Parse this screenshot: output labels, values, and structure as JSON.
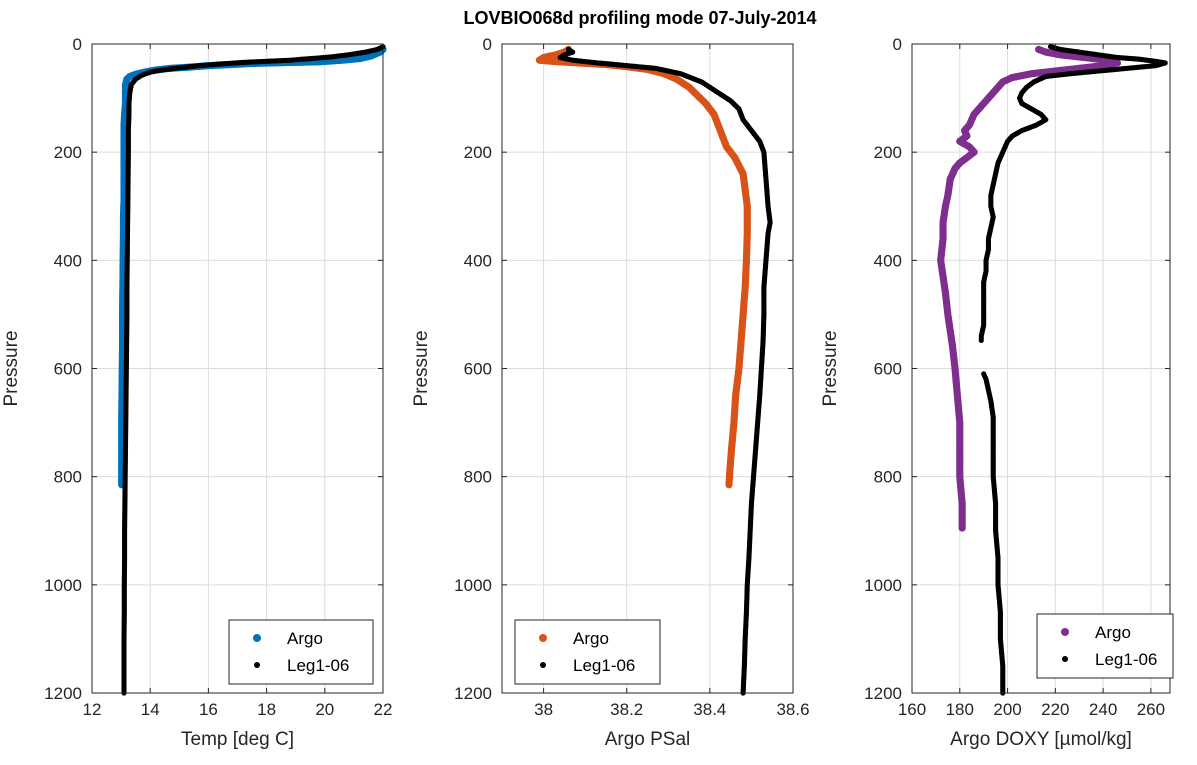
{
  "title": "LOVBIO068d profiling mode 07-July-2014",
  "colors": {
    "argo_temp": "#0072BD",
    "argo_psal": "#D95319",
    "argo_doxy": "#7E2F8E",
    "leg": "#000000",
    "grid": "#dcdcdc",
    "axis": "#262626"
  },
  "chart_data": [
    {
      "type": "scatter",
      "xlabel": "Temp [deg C]",
      "ylabel": "Pressure",
      "xlim": [
        12,
        22
      ],
      "ylim": [
        1200,
        0
      ],
      "y_reversed": true,
      "xticks": [
        12,
        14,
        16,
        18,
        20,
        22
      ],
      "yticks": [
        0,
        200,
        400,
        600,
        800,
        1000,
        1200
      ],
      "grid": true,
      "legend_position": "bottom-right",
      "series": [
        {
          "name": "Argo",
          "color_key": "argo_temp",
          "points": [
            [
              22.0,
              10
            ],
            [
              21.9,
              15
            ],
            [
              21.6,
              22
            ],
            [
              21.2,
              27
            ],
            [
              20.6,
              30
            ],
            [
              19.8,
              33
            ],
            [
              19.0,
              34
            ],
            [
              18.2,
              35
            ],
            [
              17.5,
              36
            ],
            [
              16.8,
              38
            ],
            [
              16.0,
              40
            ],
            [
              15.3,
              43
            ],
            [
              14.7,
              45
            ],
            [
              14.2,
              48
            ],
            [
              13.8,
              52
            ],
            [
              13.5,
              56
            ],
            [
              13.3,
              60
            ],
            [
              13.2,
              65
            ],
            [
              13.15,
              75
            ],
            [
              13.15,
              90
            ],
            [
              13.15,
              110
            ],
            [
              13.12,
              130
            ],
            [
              13.1,
              150
            ],
            [
              13.1,
              175
            ],
            [
              13.1,
              200
            ],
            [
              13.1,
              230
            ],
            [
              13.1,
              260
            ],
            [
              13.1,
              290
            ],
            [
              13.08,
              320
            ],
            [
              13.08,
              350
            ],
            [
              13.07,
              400
            ],
            [
              13.06,
              450
            ],
            [
              13.05,
              500
            ],
            [
              13.05,
              550
            ],
            [
              13.04,
              600
            ],
            [
              13.03,
              650
            ],
            [
              13.02,
              700
            ],
            [
              13.02,
              750
            ],
            [
              13.02,
              780
            ],
            [
              13.02,
              815
            ]
          ]
        },
        {
          "name": "Leg1-06",
          "color_key": "leg",
          "points": [
            [
              22.0,
              5
            ],
            [
              21.8,
              10
            ],
            [
              21.4,
              15
            ],
            [
              20.8,
              20
            ],
            [
              20.2,
              24
            ],
            [
              19.5,
              27
            ],
            [
              18.8,
              30
            ],
            [
              18.0,
              32
            ],
            [
              17.2,
              34
            ],
            [
              16.4,
              37
            ],
            [
              15.7,
              40
            ],
            [
              15.0,
              44
            ],
            [
              14.4,
              48
            ],
            [
              14.0,
              52
            ],
            [
              13.7,
              58
            ],
            [
              13.5,
              65
            ],
            [
              13.35,
              75
            ],
            [
              13.3,
              90
            ],
            [
              13.27,
              110
            ],
            [
              13.27,
              130
            ],
            [
              13.25,
              160
            ],
            [
              13.25,
              200
            ],
            [
              13.24,
              250
            ],
            [
              13.23,
              300
            ],
            [
              13.22,
              350
            ],
            [
              13.21,
              400
            ],
            [
              13.2,
              450
            ],
            [
              13.2,
              500
            ],
            [
              13.19,
              550
            ],
            [
              13.18,
              600
            ],
            [
              13.17,
              650
            ],
            [
              13.16,
              700
            ],
            [
              13.15,
              750
            ],
            [
              13.14,
              800
            ],
            [
              13.13,
              850
            ],
            [
              13.12,
              900
            ],
            [
              13.12,
              950
            ],
            [
              13.11,
              1000
            ],
            [
              13.11,
              1050
            ],
            [
              13.1,
              1100
            ],
            [
              13.1,
              1150
            ],
            [
              13.1,
              1200
            ]
          ]
        }
      ]
    },
    {
      "type": "scatter",
      "xlabel": "Argo PSal",
      "ylabel": "Pressure",
      "xlim": [
        37.9,
        38.6
      ],
      "ylim": [
        1200,
        0
      ],
      "y_reversed": true,
      "xticks": [
        38,
        38.2,
        38.4,
        38.6
      ],
      "yticks": [
        0,
        200,
        400,
        600,
        800,
        1000,
        1200
      ],
      "grid": true,
      "legend_position": "bottom-left",
      "series": [
        {
          "name": "Argo",
          "color_key": "argo_psal",
          "points": [
            [
              38.06,
              10
            ],
            [
              38.05,
              15
            ],
            [
              38.03,
              20
            ],
            [
              38.0,
              25
            ],
            [
              37.99,
              30
            ],
            [
              38.02,
              32
            ],
            [
              38.08,
              35
            ],
            [
              38.15,
              38
            ],
            [
              38.2,
              42
            ],
            [
              38.25,
              47
            ],
            [
              38.29,
              55
            ],
            [
              38.32,
              65
            ],
            [
              38.35,
              80
            ],
            [
              38.37,
              95
            ],
            [
              38.39,
              110
            ],
            [
              38.41,
              130
            ],
            [
              38.42,
              150
            ],
            [
              38.43,
              170
            ],
            [
              38.44,
              190
            ],
            [
              38.46,
              210
            ],
            [
              38.48,
              240
            ],
            [
              38.49,
              300
            ],
            [
              38.49,
              350
            ],
            [
              38.488,
              400
            ],
            [
              38.485,
              450
            ],
            [
              38.48,
              500
            ],
            [
              38.475,
              550
            ],
            [
              38.47,
              600
            ],
            [
              38.462,
              650
            ],
            [
              38.458,
              700
            ],
            [
              38.452,
              750
            ],
            [
              38.448,
              790
            ],
            [
              38.446,
              815
            ]
          ]
        },
        {
          "name": "Leg1-06",
          "color_key": "leg",
          "points": [
            [
              38.06,
              10
            ],
            [
              38.07,
              15
            ],
            [
              38.05,
              20
            ],
            [
              38.04,
              25
            ],
            [
              38.07,
              30
            ],
            [
              38.13,
              35
            ],
            [
              38.2,
              40
            ],
            [
              38.27,
              45
            ],
            [
              38.33,
              55
            ],
            [
              38.38,
              70
            ],
            [
              38.42,
              90
            ],
            [
              38.45,
              105
            ],
            [
              38.47,
              120
            ],
            [
              38.48,
              140
            ],
            [
              38.5,
              160
            ],
            [
              38.52,
              180
            ],
            [
              38.53,
              200
            ],
            [
              38.535,
              250
            ],
            [
              38.54,
              300
            ],
            [
              38.545,
              330
            ],
            [
              38.54,
              350
            ],
            [
              38.535,
              400
            ],
            [
              38.53,
              450
            ],
            [
              38.53,
              500
            ],
            [
              38.528,
              550
            ],
            [
              38.524,
              600
            ],
            [
              38.52,
              650
            ],
            [
              38.515,
              700
            ],
            [
              38.51,
              750
            ],
            [
              38.505,
              800
            ],
            [
              38.5,
              850
            ],
            [
              38.497,
              900
            ],
            [
              38.494,
              950
            ],
            [
              38.49,
              1000
            ],
            [
              38.488,
              1050
            ],
            [
              38.485,
              1100
            ],
            [
              38.483,
              1150
            ],
            [
              38.48,
              1200
            ]
          ]
        }
      ]
    },
    {
      "type": "scatter",
      "xlabel": "Argo DOXY [µmol/kg]",
      "ylabel": "Pressure",
      "xlim": [
        160,
        268
      ],
      "ylim": [
        1200,
        0
      ],
      "y_reversed": true,
      "xticks": [
        160,
        180,
        200,
        220,
        240,
        260
      ],
      "yticks": [
        0,
        200,
        400,
        600,
        800,
        1000,
        1200
      ],
      "grid": true,
      "legend_position": "bottom-right",
      "series": [
        {
          "name": "Argo",
          "color_key": "argo_doxy",
          "points": [
            [
              213,
              10
            ],
            [
              216,
              15
            ],
            [
              222,
              20
            ],
            [
              232,
              25
            ],
            [
              242,
              30
            ],
            [
              246,
              35
            ],
            [
              240,
              40
            ],
            [
              230,
              45
            ],
            [
              220,
              50
            ],
            [
              210,
              55
            ],
            [
              202,
              62
            ],
            [
              198,
              70
            ],
            [
              196,
              80
            ],
            [
              194,
              90
            ],
            [
              192,
              100
            ],
            [
              190,
              110
            ],
            [
              188,
              120
            ],
            [
              186,
              130
            ],
            [
              185,
              140
            ],
            [
              184,
              150
            ],
            [
              182,
              160
            ],
            [
              183,
              170
            ],
            [
              180,
              180
            ],
            [
              184,
              190
            ],
            [
              186,
              200
            ],
            [
              183,
              210
            ],
            [
              180,
              220
            ],
            [
              178,
              230
            ],
            [
              176,
              250
            ],
            [
              175,
              280
            ],
            [
              174,
              300
            ],
            [
              173,
              330
            ],
            [
              173,
              360
            ],
            [
              172,
              400
            ],
            [
              173,
              430
            ],
            [
              174,
              460
            ],
            [
              175,
              500
            ],
            [
              176,
              530
            ],
            [
              177,
              560
            ],
            [
              178,
              600
            ],
            [
              179,
              650
            ],
            [
              180,
              700
            ],
            [
              180,
              750
            ],
            [
              180,
              800
            ],
            [
              181,
              850
            ],
            [
              181,
              880
            ],
            [
              181,
              895
            ]
          ]
        },
        {
          "name": "Leg1-06",
          "color_key": "leg",
          "points": [
            [
              218,
              5
            ],
            [
              222,
              10
            ],
            [
              230,
              15
            ],
            [
              238,
              20
            ],
            [
              246,
              25
            ],
            [
              255,
              28
            ],
            [
              262,
              32
            ],
            [
              266,
              35
            ],
            [
              262,
              40
            ],
            [
              250,
              45
            ],
            [
              238,
              50
            ],
            [
              226,
              55
            ],
            [
              216,
              60
            ],
            [
              211,
              70
            ],
            [
              208,
              80
            ],
            [
              206,
              90
            ],
            [
              205,
              100
            ],
            [
              206,
              110
            ],
            [
              210,
              120
            ],
            [
              214,
              130
            ],
            [
              216,
              140
            ],
            [
              212,
              150
            ],
            [
              206,
              160
            ],
            [
              202,
              170
            ],
            [
              200,
              180
            ],
            [
              199,
              190
            ],
            [
              198,
              200
            ],
            [
              196,
              220
            ],
            [
              195,
              240
            ],
            [
              194,
              260
            ],
            [
              193,
              280
            ],
            [
              193,
              300
            ],
            [
              194,
              320
            ],
            [
              193,
              340
            ],
            [
              192,
              360
            ],
            [
              192,
              380
            ],
            [
              191,
              400
            ],
            [
              191,
              420
            ],
            [
              190,
              440
            ],
            [
              190,
              460
            ],
            [
              190,
              480
            ],
            [
              190,
              500
            ],
            [
              190,
              520
            ],
            [
              189,
              540
            ],
            [
              189,
              548
            ],
            [
              190,
              610
            ],
            [
              191,
              620
            ],
            [
              192,
              640
            ],
            [
              193,
              660
            ],
            [
              194,
              690
            ],
            [
              194,
              720
            ],
            [
              194,
              760
            ],
            [
              194,
              800
            ],
            [
              195,
              850
            ],
            [
              195,
              900
            ],
            [
              196,
              950
            ],
            [
              196,
              1000
            ],
            [
              197,
              1050
            ],
            [
              197,
              1100
            ],
            [
              198,
              1150
            ],
            [
              198,
              1200
            ]
          ]
        }
      ]
    }
  ]
}
